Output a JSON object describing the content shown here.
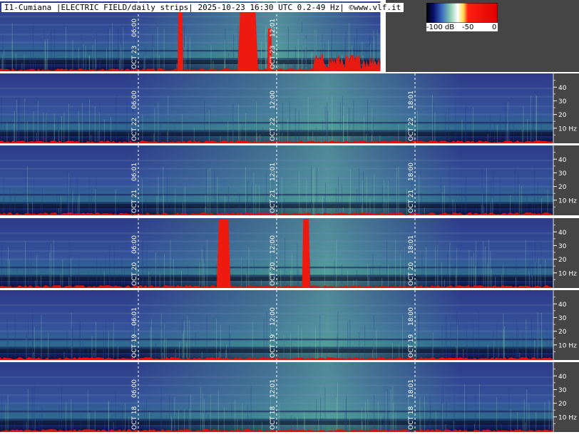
{
  "title": "I1-Cumiana |ELECTRIC FIELD/daily strips| 2025-10-23 16:30 UTC 0.2-49 Hz| ©www.vlf.it",
  "colorbar": {
    "labels": [
      "-100 dB",
      "-50",
      "0"
    ],
    "colors": [
      "#000000",
      "#ffffff",
      "#ffd84a",
      "#ff2010",
      "#e00000"
    ]
  },
  "chart_data": {
    "type": "heatmap",
    "title": "I1-Cumiana |ELECTRIC FIELD/daily strips| 2025-10-23 16:30 UTC 0.2-49 Hz| ©www.vlf.it",
    "x_axis": "UTC time of day (one strip per day)",
    "y_ticks": [
      "40",
      "30",
      "20",
      "10 Hz"
    ],
    "y_tick_values": [
      40,
      30,
      20,
      10
    ],
    "ylim": [
      0,
      49
    ],
    "color_scale_db": [
      -100,
      0
    ],
    "strips": [
      {
        "date": "OCT 23",
        "times": [
          "06:00",
          "12:01"
        ],
        "time_hours": [
          6,
          12
        ],
        "end_hour": 16.5
      },
      {
        "date": "OCT 22",
        "times": [
          "06:00",
          "12:00",
          "18:01"
        ],
        "time_hours": [
          6,
          12,
          18
        ],
        "end_hour": 24
      },
      {
        "date": "OCT 21",
        "times": [
          "06:01",
          "12:01",
          "18:00"
        ],
        "time_hours": [
          6,
          12,
          18
        ],
        "end_hour": 24
      },
      {
        "date": "OCT 20",
        "times": [
          "06:00",
          "12:00",
          "18:01"
        ],
        "time_hours": [
          6,
          12,
          18
        ],
        "end_hour": 24
      },
      {
        "date": "OCT 19",
        "times": [
          "06:01",
          "12:00",
          "18:00"
        ],
        "time_hours": [
          6,
          12,
          18
        ],
        "end_hour": 24
      },
      {
        "date": "OCT 18",
        "times": [
          "06:00",
          "12:01",
          "18:01"
        ],
        "time_hours": [
          6,
          12,
          18
        ],
        "end_hour": 24
      }
    ]
  }
}
